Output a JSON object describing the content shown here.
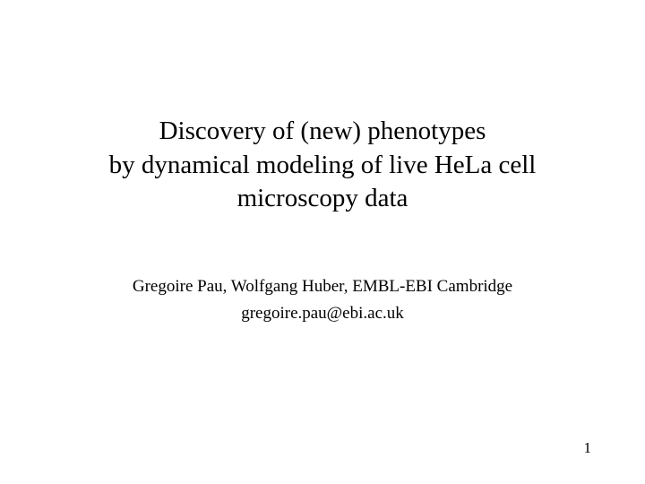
{
  "slide": {
    "title": {
      "line1": "Discovery of (new) phenotypes",
      "line2": "by dynamical modeling of live HeLa cell",
      "line3": "microscopy data",
      "fontsize": 29,
      "color": "#000000"
    },
    "authors": "Gregoire Pau, Wolfgang Huber, EMBL-EBI Cambridge",
    "email": "gregoire.pau@ebi.ac.uk",
    "authors_fontsize": 19,
    "page_number": "1",
    "page_number_fontsize": 17,
    "background_color": "#ffffff",
    "font_family": "Times New Roman"
  }
}
